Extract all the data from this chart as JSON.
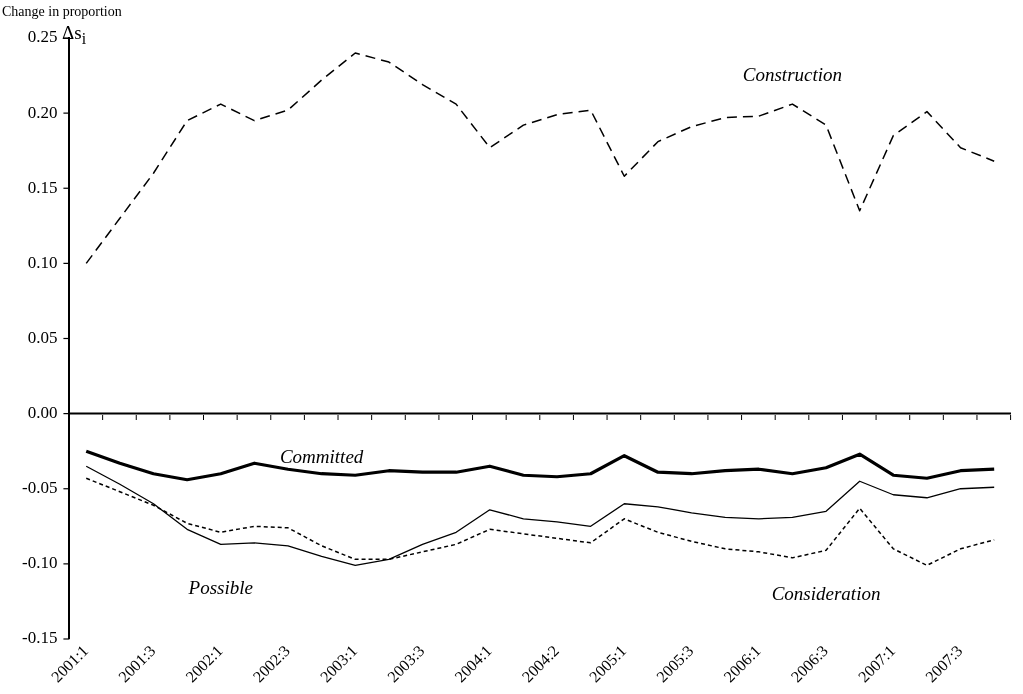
{
  "chart_data": {
    "type": "line",
    "ylabel": "Change in proportion",
    "annotations": [
      "Δs$_{i}$"
    ],
    "categories": [
      "2001:1",
      null,
      "2001:3",
      null,
      "2002:1",
      null,
      "2002:3",
      null,
      "2003:1",
      null,
      "2003:3",
      null,
      "2004:1",
      null,
      "2004:2",
      null,
      "2005:1",
      null,
      "2005:3",
      null,
      "2006:1",
      null,
      "2006:3",
      null,
      "2007:1",
      null,
      "2007:3",
      null
    ],
    "series": [
      {
        "name": "Construction",
        "color": "#000000",
        "line_style": "dashed",
        "values": [
          0.1,
          0.13,
          0.16,
          0.195,
          0.206,
          0.195,
          0.202,
          0.222,
          0.24,
          0.234,
          0.219,
          0.206,
          0.177,
          0.192,
          0.199,
          0.202,
          0.158,
          0.181,
          0.191,
          0.197,
          0.198,
          0.206,
          0.192,
          0.135,
          0.185,
          0.201,
          0.177,
          0.168
        ]
      },
      {
        "name": "Committed",
        "color": "#000000",
        "line_style": "solid",
        "values": [
          -0.025,
          -0.033,
          -0.04,
          -0.044,
          -0.04,
          -0.033,
          -0.037,
          -0.04,
          -0.041,
          -0.038,
          -0.039,
          -0.039,
          -0.035,
          -0.041,
          -0.042,
          -0.04,
          -0.028,
          -0.039,
          -0.04,
          -0.038,
          -0.037,
          -0.04,
          -0.036,
          -0.027,
          -0.041,
          -0.043,
          -0.038,
          -0.037
        ]
      },
      {
        "name": "Possible",
        "color": "#000000",
        "line_style": "solid",
        "values": [
          -0.035,
          -0.047,
          -0.06,
          -0.077,
          -0.087,
          -0.086,
          -0.088,
          -0.095,
          -0.101,
          -0.097,
          -0.087,
          -0.079,
          -0.064,
          -0.07,
          -0.072,
          -0.075,
          -0.06,
          -0.062,
          -0.066,
          -0.069,
          -0.07,
          -0.069,
          -0.065,
          -0.045,
          -0.054,
          -0.056,
          -0.05,
          -0.049
        ]
      },
      {
        "name": "Consideration",
        "color": "#000000",
        "line_style": "dotted",
        "values": [
          -0.043,
          -0.052,
          -0.061,
          -0.073,
          -0.079,
          -0.075,
          -0.076,
          -0.088,
          -0.097,
          -0.097,
          -0.092,
          -0.087,
          -0.077,
          -0.08,
          -0.083,
          -0.086,
          -0.07,
          -0.079,
          -0.085,
          -0.09,
          -0.092,
          -0.096,
          -0.091,
          -0.063,
          -0.09,
          -0.101,
          -0.09,
          -0.084
        ]
      }
    ],
    "ylim": [
      -0.15,
      0.25
    ],
    "yticks": [
      {
        "value": 0.25,
        "label": "0.25"
      },
      {
        "value": 0.2,
        "label": "0.20"
      },
      {
        "value": 0.15,
        "label": "0.15"
      },
      {
        "value": 0.1,
        "label": "0.10"
      },
      {
        "value": 0.05,
        "label": "0.05"
      },
      {
        "value": 0,
        "label": "0.00"
      },
      {
        "value": -0.05,
        "label": "-0.05"
      },
      {
        "value": -0.1,
        "label": "-0.10"
      },
      {
        "value": -0.15,
        "label": "-0.15"
      }
    ],
    "ref_lines": [
      {
        "axis": "y",
        "value": 0,
        "color": "#000000",
        "line_style": "solid"
      }
    ],
    "grid": false,
    "legend": false,
    "marker": "none"
  }
}
